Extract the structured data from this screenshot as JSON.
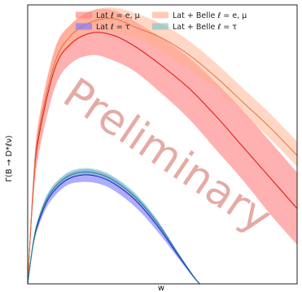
{
  "chart_data": {
    "type": "line",
    "title": "",
    "xlabel": "w",
    "ylabel": "Γ(B → D*ℓν)",
    "x_ticks": [],
    "y_ticks": [],
    "grid": false,
    "legend_position": "top",
    "watermark": "Preliminary",
    "xlim": [
      1.0,
      1.5
    ],
    "ylim": [
      0.0,
      1.0
    ],
    "series": [
      {
        "name": "Lat ℓ = e, μ",
        "color": "#ff7f7f",
        "line_color": "#dd1111",
        "x": [
          1.0,
          1.01,
          1.02,
          1.05,
          1.08,
          1.12,
          1.16,
          1.2,
          1.25,
          1.3,
          1.35,
          1.4,
          1.45,
          1.5
        ],
        "y": [
          0.0,
          0.33,
          0.52,
          0.77,
          0.86,
          0.9,
          0.89,
          0.85,
          0.78,
          0.7,
          0.6,
          0.49,
          0.38,
          0.27
        ],
        "band_lower": [
          0.0,
          0.29,
          0.46,
          0.7,
          0.79,
          0.82,
          0.8,
          0.76,
          0.68,
          0.59,
          0.48,
          0.37,
          0.25,
          0.14
        ],
        "band_upper": [
          0.0,
          0.37,
          0.58,
          0.84,
          0.93,
          0.98,
          0.98,
          0.94,
          0.88,
          0.81,
          0.72,
          0.62,
          0.51,
          0.4
        ]
      },
      {
        "name": "Lat + Belle ℓ = e, μ",
        "color": "#ffb08a",
        "line_color": "#e07040",
        "x": [
          1.0,
          1.01,
          1.02,
          1.05,
          1.08,
          1.12,
          1.16,
          1.2,
          1.25,
          1.3,
          1.35,
          1.4,
          1.45,
          1.5
        ],
        "y": [
          0.0,
          0.34,
          0.54,
          0.79,
          0.89,
          0.94,
          0.95,
          0.92,
          0.88,
          0.82,
          0.74,
          0.65,
          0.56,
          0.46
        ],
        "band_lower": [
          0.0,
          0.32,
          0.51,
          0.75,
          0.85,
          0.9,
          0.9,
          0.88,
          0.83,
          0.77,
          0.7,
          0.61,
          0.52,
          0.42
        ],
        "band_upper": [
          0.0,
          0.36,
          0.57,
          0.83,
          0.93,
          0.98,
          0.99,
          0.97,
          0.93,
          0.87,
          0.79,
          0.7,
          0.61,
          0.51
        ]
      },
      {
        "name": "Lat ℓ = τ",
        "color": "#7b7bff",
        "line_color": "#1a1ad0",
        "x": [
          1.0,
          1.01,
          1.02,
          1.04,
          1.07,
          1.1,
          1.13,
          1.16,
          1.2,
          1.24,
          1.28,
          1.31,
          1.32
        ],
        "y": [
          0.0,
          0.14,
          0.22,
          0.31,
          0.37,
          0.39,
          0.385,
          0.36,
          0.3,
          0.21,
          0.1,
          0.02,
          0.0
        ],
        "band_lower": [
          0.0,
          0.13,
          0.205,
          0.29,
          0.35,
          0.365,
          0.36,
          0.335,
          0.275,
          0.19,
          0.09,
          0.017,
          0.0
        ],
        "band_upper": [
          0.0,
          0.15,
          0.235,
          0.33,
          0.39,
          0.41,
          0.405,
          0.38,
          0.32,
          0.23,
          0.11,
          0.023,
          0.0
        ]
      },
      {
        "name": "Lat + Belle ℓ = τ",
        "color": "#7fc4c4",
        "line_color": "#1a8a7a",
        "x": [
          1.0,
          1.01,
          1.02,
          1.04,
          1.07,
          1.1,
          1.13,
          1.16,
          1.2,
          1.24,
          1.28,
          1.31,
          1.32
        ],
        "y": [
          0.0,
          0.145,
          0.23,
          0.32,
          0.38,
          0.4,
          0.395,
          0.37,
          0.31,
          0.22,
          0.105,
          0.022,
          0.0
        ],
        "band_lower": [
          0.0,
          0.14,
          0.22,
          0.31,
          0.37,
          0.39,
          0.385,
          0.36,
          0.3,
          0.21,
          0.1,
          0.02,
          0.0
        ],
        "band_upper": [
          0.0,
          0.15,
          0.24,
          0.335,
          0.395,
          0.415,
          0.41,
          0.385,
          0.325,
          0.23,
          0.11,
          0.024,
          0.0
        ]
      }
    ]
  }
}
